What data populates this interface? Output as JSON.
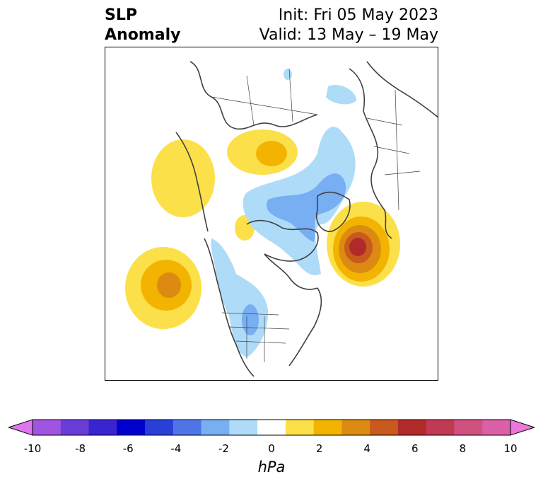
{
  "title": {
    "line1": "SLP",
    "line2": "Anomaly"
  },
  "subtitle": {
    "init": "Init: Fri 05 May 2023",
    "valid": "Valid: 13 May – 19 May"
  },
  "colorbar": {
    "units": "hPa",
    "ticks": [
      "-10",
      "-8",
      "-6",
      "-4",
      "-2",
      "0",
      "2",
      "4",
      "6",
      "8",
      "10"
    ],
    "colors": [
      "#dd77ee",
      "#a055e0",
      "#6a3dd8",
      "#3a24d0",
      "#0000cc",
      "#2a3fd8",
      "#4f75e8",
      "#78aef2",
      "#aedcf8",
      "#ffffff",
      "#fbe04a",
      "#f2b400",
      "#dd8a12",
      "#c85a1e",
      "#b02a2a",
      "#c03a54",
      "#d05080",
      "#dc60a8",
      "#ea78d8"
    ]
  },
  "map_colors": {
    "land": "#404040",
    "pos1": "#fbe04a",
    "pos2": "#f2b400",
    "pos3": "#dd8a12",
    "pos4": "#c85a1e",
    "pos5": "#b02a2a",
    "neg1": "#aedcf8",
    "neg2": "#78aef2"
  }
}
